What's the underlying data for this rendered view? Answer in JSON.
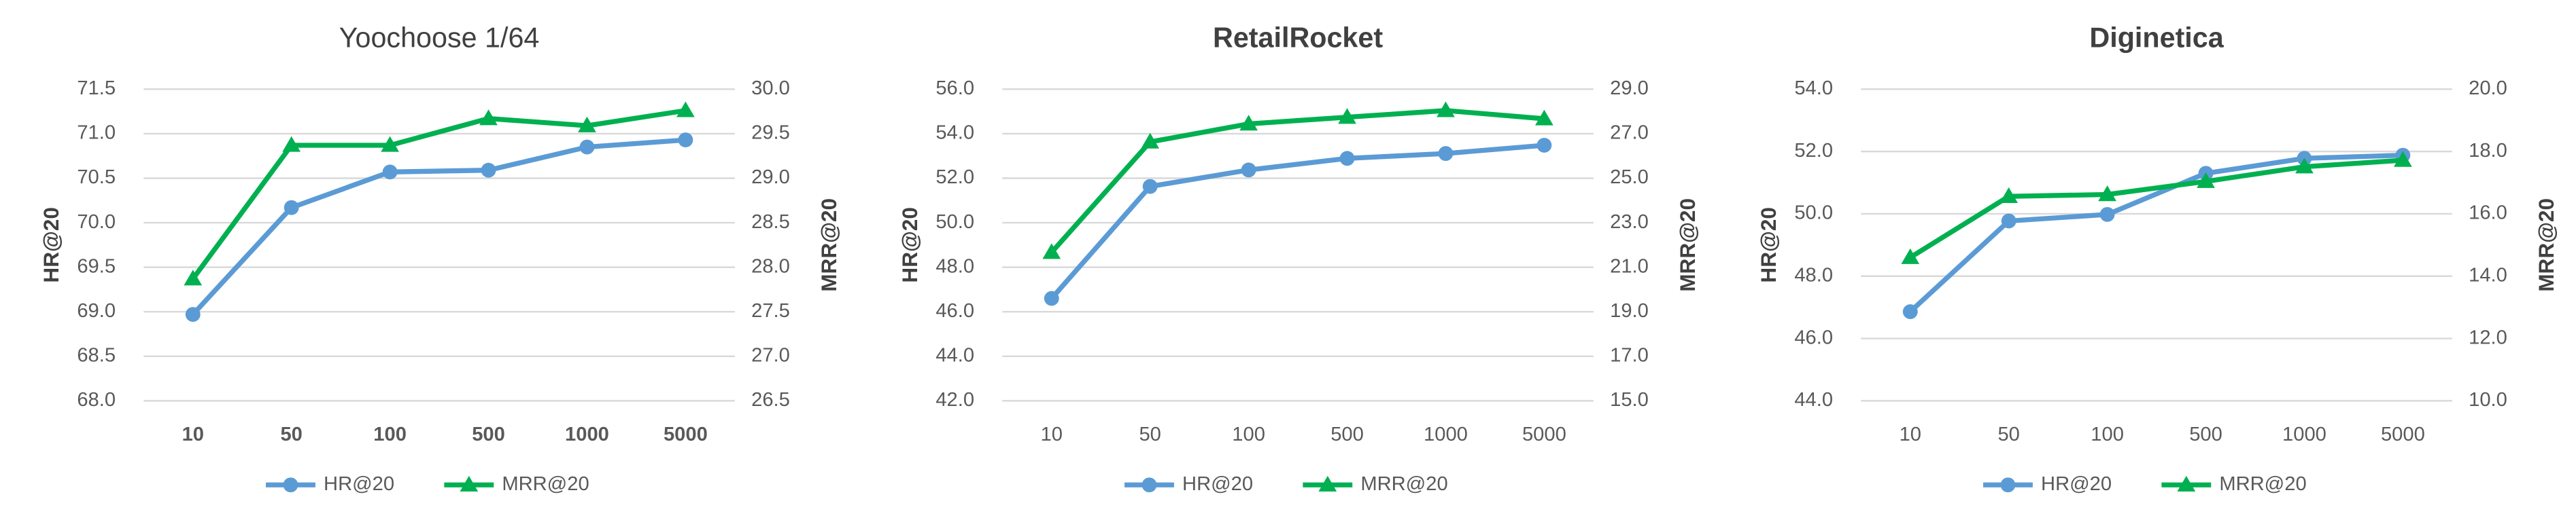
{
  "chart_data": [
    {
      "type": "line",
      "title": "Yoochoose 1/64",
      "ylabel": "HR@20",
      "y2label": "MRR@20",
      "categories": [
        "10",
        "50",
        "100",
        "500",
        "1000",
        "5000"
      ],
      "series": [
        {
          "name": "HR@20",
          "color": "#5b9bd5",
          "values": [
            68.97,
            70.17,
            70.57,
            70.59,
            70.85,
            70.93
          ]
        },
        {
          "name": "MRR@20",
          "color": "#00b050",
          "axis": "y2",
          "values": [
            27.87,
            29.37,
            29.37,
            29.67,
            29.59,
            29.76
          ]
        }
      ],
      "ylim": [
        68.0,
        71.5
      ],
      "yticks": [
        {
          "value": 68,
          "label": "68.0"
        },
        68.5,
        {
          "value": 69,
          "label": "69.0"
        },
        69.5,
        {
          "value": 70,
          "label": "70.0"
        },
        70.5,
        {
          "value": 71,
          "label": "71.0"
        },
        71.5
      ],
      "y2lim": [
        26.5,
        30.0
      ],
      "y2ticks": [
        26.5,
        {
          "value": 27,
          "label": "27.0"
        },
        27.5,
        {
          "value": 28,
          "label": "28.0"
        },
        28.5,
        {
          "value": 29,
          "label": "29.0"
        },
        29.5,
        {
          "value": 30,
          "label": "30.0"
        }
      ],
      "grid": true
    },
    {
      "type": "line",
      "title": "RetailRocket",
      "ylabel": "HR@20",
      "y2label": "MRR@20",
      "categories": [
        "10",
        "50",
        "100",
        "500",
        "1000",
        "5000"
      ],
      "series": [
        {
          "name": "HR@20",
          "color": "#5b9bd5",
          "values": [
            46.6,
            51.63,
            52.37,
            52.89,
            53.11,
            53.48
          ]
        },
        {
          "name": "MRR@20",
          "color": "#00b050",
          "axis": "y2",
          "values": [
            21.67,
            26.63,
            27.44,
            27.74,
            28.04,
            27.67
          ]
        }
      ],
      "ylim": [
        42.0,
        56.0
      ],
      "yticks": [
        {
          "value": 42,
          "label": "42.0"
        },
        {
          "value": 44,
          "label": "44.0"
        },
        {
          "value": 46,
          "label": "46.0"
        },
        {
          "value": 48,
          "label": "48.0"
        },
        {
          "value": 50,
          "label": "50.0"
        },
        {
          "value": 52,
          "label": "52.0"
        },
        {
          "value": 54,
          "label": "54.0"
        },
        {
          "value": 56,
          "label": "56.0"
        }
      ],
      "y2lim": [
        15.0,
        29.0
      ],
      "y2ticks": [
        {
          "value": 15,
          "label": "15.0"
        },
        {
          "value": 17,
          "label": "17.0"
        },
        {
          "value": 19,
          "label": "19.0"
        },
        {
          "value": 21,
          "label": "21.0"
        },
        {
          "value": 23,
          "label": "23.0"
        },
        {
          "value": 25,
          "label": "25.0"
        },
        {
          "value": 27,
          "label": "27.0"
        },
        {
          "value": 29,
          "label": "29.0"
        }
      ],
      "grid": true
    },
    {
      "type": "line",
      "title": "Diginetica",
      "ylabel": "HR@20",
      "y2label": "MRR@20",
      "categories": [
        "10",
        "50",
        "100",
        "500",
        "1000",
        "5000"
      ],
      "series": [
        {
          "name": "HR@20",
          "color": "#5b9bd5",
          "values": [
            46.86,
            49.77,
            49.98,
            51.3,
            51.78,
            51.88
          ]
        },
        {
          "name": "MRR@20",
          "color": "#00b050",
          "axis": "y2",
          "values": [
            14.6,
            16.56,
            16.62,
            17.04,
            17.51,
            17.72
          ]
        }
      ],
      "ylim": [
        44.0,
        54.0
      ],
      "yticks": [
        {
          "value": 44,
          "label": "44.0"
        },
        {
          "value": 46,
          "label": "46.0"
        },
        {
          "value": 48,
          "label": "48.0"
        },
        {
          "value": 50,
          "label": "50.0"
        },
        {
          "value": 52,
          "label": "52.0"
        },
        {
          "value": 54,
          "label": "54.0"
        }
      ],
      "y2lim": [
        10.0,
        20.0
      ],
      "y2ticks": [
        {
          "value": 10,
          "label": "10.0"
        },
        {
          "value": 12,
          "label": "12.0"
        },
        {
          "value": 14,
          "label": "14.0"
        },
        {
          "value": 16,
          "label": "16.0"
        },
        {
          "value": 18,
          "label": "18.0"
        },
        {
          "value": 20,
          "label": "20.0"
        }
      ],
      "grid": true
    }
  ]
}
